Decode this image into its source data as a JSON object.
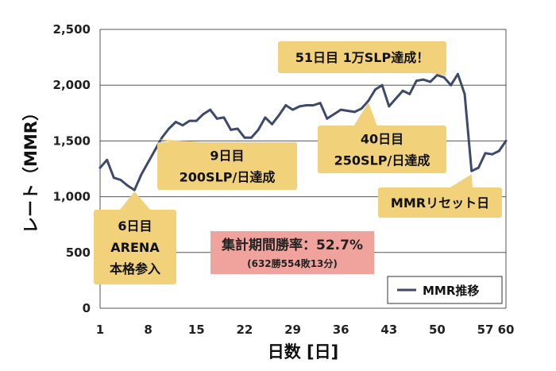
{
  "chart_data": {
    "type": "line",
    "title": "",
    "xlabel": "日数 [日]",
    "ylabel": "レート（MMR）",
    "xlim": [
      1,
      60
    ],
    "ylim": [
      0,
      2500
    ],
    "x_ticks": [
      1,
      8,
      15,
      22,
      29,
      36,
      43,
      50,
      57,
      60
    ],
    "y_ticks": [
      0,
      500,
      1000,
      1500,
      2000,
      2500
    ],
    "y_tick_labels": [
      "0",
      "500",
      "1,000",
      "1,500",
      "2,000",
      "2,500"
    ],
    "grid": "horizontal",
    "legend_position": "bottom-right",
    "colors": {
      "line": "#3d4a6b",
      "callout": "#f1d17a",
      "stats_box": "#f0a39c"
    },
    "series": [
      {
        "name": "MMR推移",
        "x": [
          1,
          2,
          3,
          4,
          5,
          6,
          7,
          8,
          9,
          10,
          11,
          12,
          13,
          14,
          15,
          16,
          17,
          18,
          19,
          20,
          21,
          22,
          23,
          24,
          25,
          26,
          27,
          28,
          29,
          30,
          31,
          32,
          33,
          34,
          35,
          36,
          37,
          38,
          39,
          40,
          41,
          42,
          43,
          44,
          45,
          46,
          47,
          48,
          49,
          50,
          51,
          52,
          53,
          54,
          55,
          56,
          57,
          58,
          59,
          60
        ],
        "values": [
          1260,
          1330,
          1170,
          1150,
          1100,
          1060,
          1200,
          1310,
          1420,
          1530,
          1610,
          1670,
          1640,
          1680,
          1680,
          1740,
          1780,
          1700,
          1710,
          1600,
          1610,
          1530,
          1530,
          1600,
          1710,
          1650,
          1730,
          1820,
          1780,
          1810,
          1820,
          1820,
          1840,
          1700,
          1740,
          1780,
          1770,
          1760,
          1790,
          1860,
          1960,
          2000,
          1810,
          1880,
          1950,
          1920,
          2040,
          2050,
          2030,
          2090,
          2070,
          2000,
          2100,
          1920,
          1230,
          1260,
          1390,
          1380,
          1410,
          1500
        ]
      }
    ],
    "annotations": [
      {
        "text": "6日目\nARENA\n本格参入",
        "x": 6,
        "y": 1060
      },
      {
        "text": "9日目\n200SLP/日達成",
        "x": 9,
        "y": 1530
      },
      {
        "text": "40日目\n250SLP/日達成",
        "x": 40,
        "y": 1860
      },
      {
        "text": "51日目 1万SLP達成！",
        "x": 51,
        "y": 2070
      },
      {
        "text": "MMRリセット日",
        "x": 55,
        "y": 1230
      }
    ],
    "stats": {
      "text": "集計期間勝率：52.7%",
      "sub": "(632勝554敗13分)"
    }
  }
}
